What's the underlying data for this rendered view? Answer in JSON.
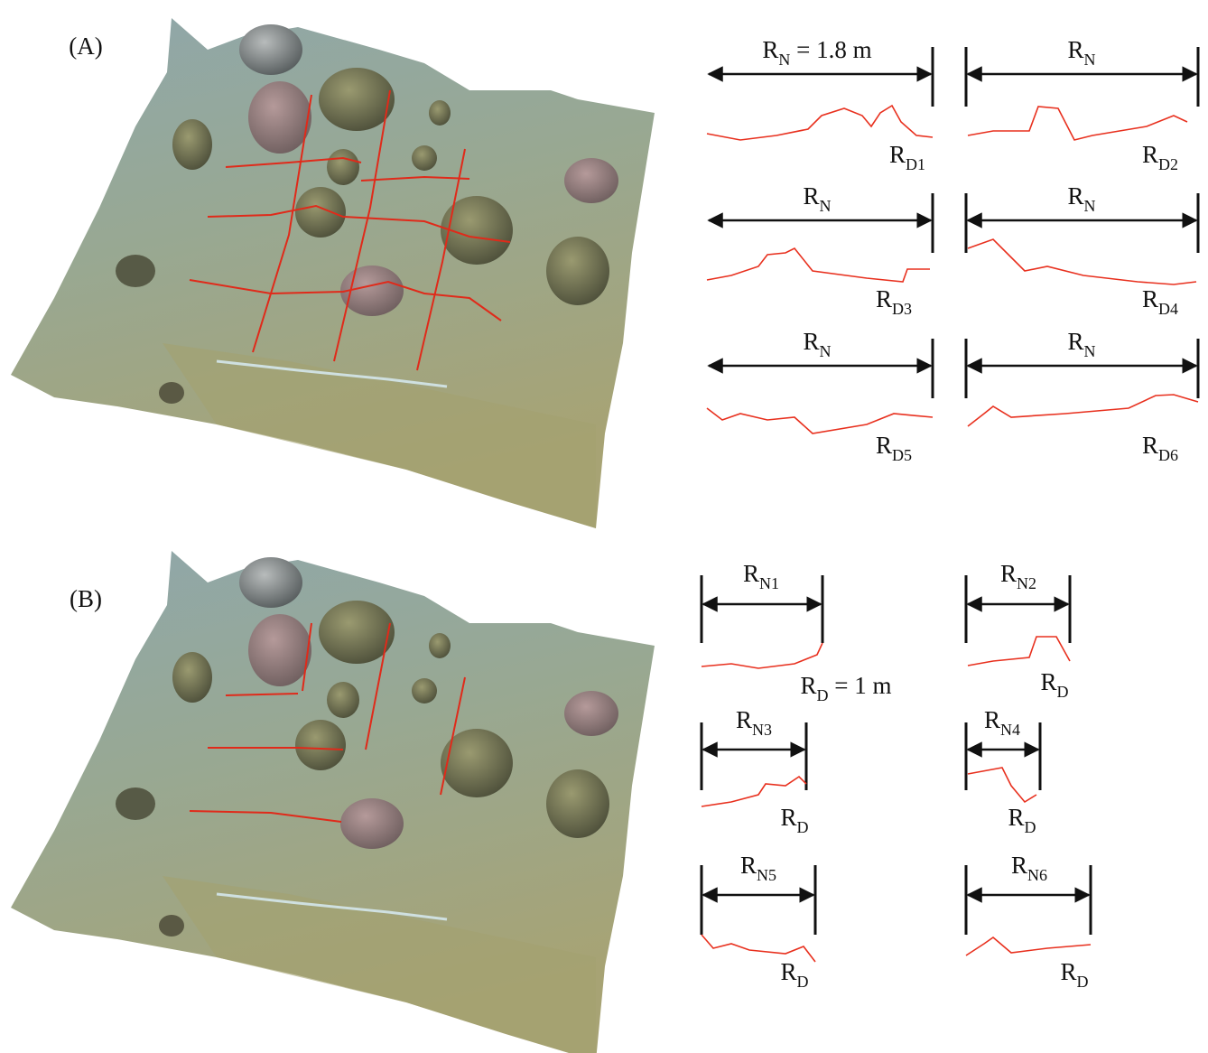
{
  "panels": [
    {
      "label": "(A)",
      "profiles": [
        {
          "width_label": {
            "main": "R",
            "sub": "N",
            "rest": " = 1.8 m"
          },
          "profile_label": {
            "main": "R",
            "sub": "D1"
          }
        },
        {
          "width_label": {
            "main": "R",
            "sub": "N"
          },
          "profile_label": {
            "main": "R",
            "sub": "D2"
          }
        },
        {
          "width_label": {
            "main": "R",
            "sub": "N"
          },
          "profile_label": {
            "main": "R",
            "sub": "D3"
          }
        },
        {
          "width_label": {
            "main": "R",
            "sub": "N"
          },
          "profile_label": {
            "main": "R",
            "sub": "D4"
          }
        },
        {
          "width_label": {
            "main": "R",
            "sub": "N"
          },
          "profile_label": {
            "main": "R",
            "sub": "D5"
          }
        },
        {
          "width_label": {
            "main": "R",
            "sub": "N"
          },
          "profile_label": {
            "main": "R",
            "sub": "D6"
          }
        }
      ]
    },
    {
      "label": "(B)",
      "profiles": [
        {
          "width_label": {
            "main": "R",
            "sub": "N1"
          },
          "profile_label": {
            "main": "R",
            "sub": "D",
            "rest": " = 1 m"
          }
        },
        {
          "width_label": {
            "main": "R",
            "sub": "N2"
          },
          "profile_label": {
            "main": "R",
            "sub": "D"
          }
        },
        {
          "width_label": {
            "main": "R",
            "sub": "N3"
          },
          "profile_label": {
            "main": "R",
            "sub": "D"
          }
        },
        {
          "width_label": {
            "main": "R",
            "sub": "N4"
          },
          "profile_label": {
            "main": "R",
            "sub": "D"
          }
        },
        {
          "width_label": {
            "main": "R",
            "sub": "N5"
          },
          "profile_label": {
            "main": "R",
            "sub": "D"
          }
        },
        {
          "width_label": {
            "main": "R",
            "sub": "N6"
          },
          "profile_label": {
            "main": "R",
            "sub": "D"
          }
        }
      ]
    }
  ]
}
